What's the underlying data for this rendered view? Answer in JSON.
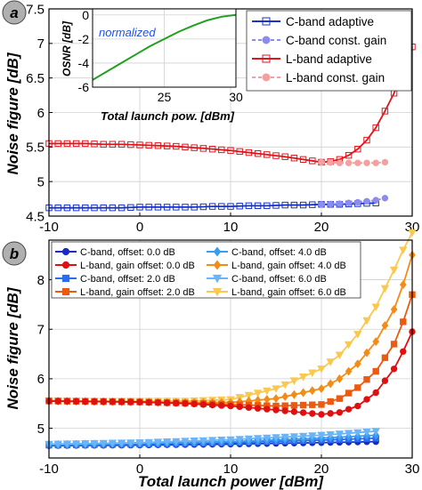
{
  "figure": {
    "panel_a_label": "a",
    "panel_b_label": "b"
  },
  "colors": {
    "c_adaptive": "#1a33c8",
    "c_const": "#8c8cf0",
    "l_adaptive": "#e0161c",
    "l_const": "#f4a0a0",
    "inset_line": "#20a020",
    "inset_note": "#1e50e6",
    "panel_label_bg": "#b0b0b0",
    "c_offsets": [
      "#1a2bc0",
      "#2a6cf0",
      "#3a9cf0",
      "#6ab4f8"
    ],
    "l_offsets": [
      "#e01010",
      "#ea5a10",
      "#f28c18",
      "#f8c850"
    ]
  },
  "chart_data": [
    {
      "type": "line",
      "panel": "a",
      "xlabel": "",
      "ylabel": "Noise figure [dB]",
      "xlim": [
        -10,
        30
      ],
      "ylim": [
        4.5,
        7.5
      ],
      "xticks": [
        -10,
        0,
        10,
        20,
        30
      ],
      "yticks": [
        4.5,
        5,
        5.5,
        6,
        6.5,
        7,
        7.5
      ],
      "grid": true,
      "legend_position": "top-right",
      "x": [
        -10,
        -8,
        -6,
        -4,
        -2,
        0,
        2,
        4,
        6,
        8,
        10,
        12,
        14,
        16,
        18,
        20,
        21,
        22,
        23,
        24,
        25,
        26,
        27,
        28,
        29,
        30
      ],
      "series": [
        {
          "name": "C-band adaptive",
          "marker": "square",
          "color_key": "c_adaptive",
          "x": [
            -10,
            -8,
            -6,
            -4,
            -2,
            0,
            2,
            4,
            6,
            8,
            10,
            12,
            14,
            16,
            18,
            20,
            22,
            24,
            26
          ],
          "y": [
            4.62,
            4.62,
            4.62,
            4.62,
            4.62,
            4.63,
            4.63,
            4.63,
            4.63,
            4.64,
            4.64,
            4.65,
            4.65,
            4.66,
            4.66,
            4.67,
            4.67,
            4.68,
            4.69
          ]
        },
        {
          "name": "C-band const. gain",
          "marker": "circle",
          "color_key": "c_const",
          "dashed": true,
          "x": [
            20,
            22,
            24,
            26,
            27
          ],
          "y": [
            4.67,
            4.68,
            4.7,
            4.73,
            4.76
          ]
        },
        {
          "name": "L-band adaptive",
          "marker": "square",
          "color_key": "l_adaptive",
          "x": [
            -10,
            -8,
            -6,
            -4,
            -2,
            0,
            2,
            4,
            6,
            8,
            10,
            12,
            14,
            16,
            18,
            20,
            21,
            22,
            23,
            24,
            25,
            26,
            27,
            28,
            29,
            30
          ],
          "y": [
            5.55,
            5.55,
            5.55,
            5.54,
            5.54,
            5.53,
            5.52,
            5.51,
            5.49,
            5.47,
            5.45,
            5.42,
            5.39,
            5.36,
            5.32,
            5.28,
            5.29,
            5.32,
            5.38,
            5.47,
            5.6,
            5.78,
            6.02,
            6.28,
            6.58,
            6.95
          ]
        },
        {
          "name": "L-band const. gain",
          "marker": "circle",
          "color_key": "l_const",
          "dashed": true,
          "x": [
            20,
            22,
            24,
            26,
            27
          ],
          "y": [
            5.28,
            5.27,
            5.27,
            5.27,
            5.28
          ]
        }
      ],
      "inset": {
        "type": "line",
        "xlabel": "Total launch pow. [dBm]",
        "ylabel": "OSNR [dB]",
        "annotation": "normalized",
        "xlim": [
          20,
          30
        ],
        "ylim": [
          -6,
          0.5
        ],
        "xticks": [
          25,
          30
        ],
        "yticks": [
          0,
          -2,
          -4,
          -6
        ],
        "x": [
          20,
          21,
          22,
          23,
          24,
          25,
          26,
          27,
          28,
          29,
          30
        ],
        "y": [
          -5.4,
          -4.7,
          -4.0,
          -3.3,
          -2.6,
          -2.0,
          -1.4,
          -0.9,
          -0.45,
          -0.15,
          0.0
        ]
      }
    },
    {
      "type": "line",
      "panel": "b",
      "xlabel": "Total launch power [dBm]",
      "ylabel": "Noise figure [dB]",
      "xlim": [
        -10,
        30
      ],
      "ylim": [
        4.4,
        8.8
      ],
      "xticks": [
        -10,
        0,
        10,
        20,
        30
      ],
      "yticks": [
        5,
        6,
        7,
        8
      ],
      "grid": true,
      "legend_position": "top-left",
      "legend_columns": 2,
      "c_x": [
        -10,
        0,
        10,
        20,
        26
      ],
      "l_x": [
        -10,
        -5,
        0,
        5,
        10,
        15,
        20,
        22,
        24,
        26,
        28,
        29,
        30
      ],
      "series": [
        {
          "name": "C-band, offset: 0.0 dB",
          "band": "C",
          "marker": "circle",
          "color_index": 0,
          "y": [
            4.65,
            4.66,
            4.68,
            4.71,
            4.73
          ]
        },
        {
          "name": "L-band, gain offset: 0.0 dB",
          "band": "L",
          "marker": "circle",
          "color_index": 0,
          "y": [
            5.55,
            5.54,
            5.53,
            5.5,
            5.45,
            5.37,
            5.28,
            5.32,
            5.45,
            5.72,
            6.2,
            6.55,
            6.95
          ]
        },
        {
          "name": "C-band, offset: 2.0 dB",
          "band": "C",
          "marker": "square",
          "color_index": 1,
          "y": [
            4.66,
            4.68,
            4.71,
            4.76,
            4.8
          ]
        },
        {
          "name": "L-band, gain offset: 2.0 dB",
          "band": "L",
          "marker": "square",
          "color_index": 1,
          "y": [
            5.55,
            5.54,
            5.53,
            5.51,
            5.48,
            5.45,
            5.48,
            5.6,
            5.82,
            6.15,
            6.7,
            7.15,
            7.7
          ]
        },
        {
          "name": "C-band, offset: 4.0 dB",
          "band": "C",
          "marker": "diamond",
          "color_index": 2,
          "y": [
            4.67,
            4.69,
            4.73,
            4.8,
            4.86
          ]
        },
        {
          "name": "L-band, gain offset: 4.0 dB",
          "band": "L",
          "marker": "diamond",
          "color_index": 2,
          "y": [
            5.55,
            5.54,
            5.53,
            5.52,
            5.52,
            5.6,
            5.8,
            6.0,
            6.3,
            6.75,
            7.4,
            7.9,
            8.5
          ]
        },
        {
          "name": "C-band, offset: 6.0 dB",
          "band": "C",
          "marker": "triangle-down",
          "color_index": 3,
          "y": [
            4.68,
            4.71,
            4.77,
            4.86,
            4.94
          ]
        },
        {
          "name": "L-band, gain offset: 6.0 dB",
          "band": "L",
          "marker": "triangle-down",
          "color_index": 3,
          "y": [
            5.56,
            5.55,
            5.55,
            5.55,
            5.58,
            5.8,
            6.2,
            6.48,
            6.9,
            7.45,
            8.2,
            8.6,
            8.95
          ]
        }
      ]
    }
  ]
}
